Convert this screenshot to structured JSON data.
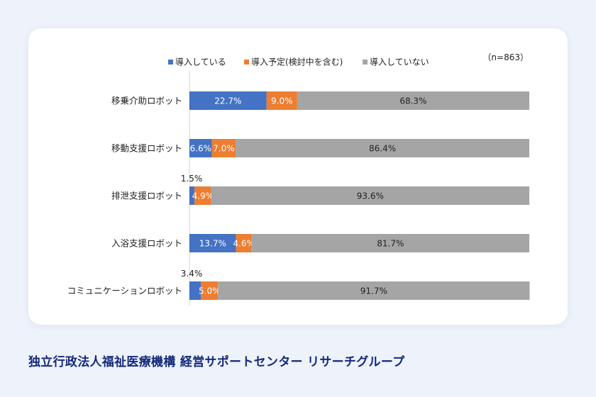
{
  "chart_data": {
    "type": "bar",
    "orientation": "horizontal",
    "stacked": true,
    "categories": [
      "移乗介助ロボット",
      "移動支援ロボット",
      "排泄支援ロボット",
      "入浴支援ロボット",
      "コミュニケーションロボット"
    ],
    "series": [
      {
        "name": "導入している",
        "color": "#4472c4",
        "values": [
          22.7,
          6.6,
          1.5,
          13.7,
          3.4
        ],
        "labels": [
          "22.7%",
          "6.6%",
          "1.5%",
          "13.7%",
          "3.4%"
        ]
      },
      {
        "name": "導入予定(検討中を含む)",
        "color": "#ed7d31",
        "values": [
          9.0,
          7.0,
          4.9,
          4.6,
          5.0
        ],
        "labels": [
          "9.0%",
          "7.0%",
          "4.9%",
          "4.6%",
          "5.0%"
        ]
      },
      {
        "name": "導入していない",
        "color": "#a5a5a5",
        "values": [
          68.3,
          86.4,
          93.6,
          81.7,
          91.7
        ],
        "labels": [
          "68.3%",
          "86.4%",
          "93.6%",
          "81.7%",
          "91.7%"
        ]
      }
    ],
    "xlim": [
      0,
      100
    ],
    "legend_position": "top",
    "sample_note": "（n=863）",
    "grid": false
  },
  "footer": {
    "organization": "独立行政法人福祉医療機構 経営サポートセンター リサーチグループ"
  }
}
